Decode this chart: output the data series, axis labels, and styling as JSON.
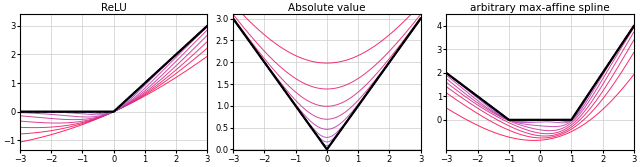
{
  "titles": [
    "ReLU",
    "Absolute value",
    "arbitrary max-affine spline"
  ],
  "xlim": [
    -3,
    3
  ],
  "beta_values": [
    0.2,
    0.35,
    0.5,
    0.7,
    1.0,
    1.5,
    2.5,
    4.0,
    8.0,
    20.0
  ],
  "color_low": [
    1.0,
    0.05,
    0.3
  ],
  "color_high": [
    0.55,
    0.4,
    0.95
  ],
  "hard_color": "#000000",
  "grid_color": "#cccccc",
  "background_color": "#ffffff",
  "relu_ylim": [
    -1.35,
    3.4
  ],
  "relu_yticks": [
    -1,
    0,
    1,
    2,
    3
  ],
  "abs_ylim": [
    -0.02,
    3.1
  ],
  "abs_yticks": [
    0.0,
    0.5,
    1.0,
    1.5,
    2.0,
    2.5,
    3.0
  ],
  "spline_ylim": [
    -1.3,
    4.5
  ],
  "spline_yticks": [
    0,
    1,
    2,
    3,
    4
  ],
  "xticks": [
    -3,
    -2,
    -1,
    0,
    1,
    2,
    3
  ],
  "figsize": [
    6.4,
    1.67
  ],
  "dpi": 100
}
